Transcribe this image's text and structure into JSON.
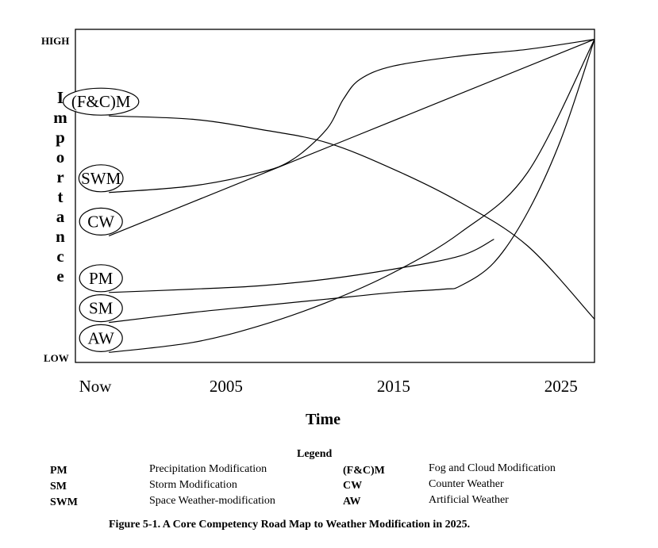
{
  "chart_data": {
    "type": "line",
    "title": "",
    "xlabel": "Time",
    "ylabel": "Importance",
    "y_min_label": "LOW",
    "y_max_label": "HIGH",
    "x_ticks": [
      "Now",
      "2005",
      "2015",
      "2025"
    ],
    "x_tick_values": [
      1996,
      2005,
      2015,
      2025
    ],
    "xlim": [
      1996,
      2027
    ],
    "ylim": [
      0,
      1
    ],
    "series": [
      {
        "name": "(F&C)M",
        "x": [
          1998,
          2003,
          2007,
          2011,
          2015,
          2019,
          2023,
          2027
        ],
        "y": [
          0.74,
          0.73,
          0.7,
          0.66,
          0.58,
          0.48,
          0.35,
          0.13
        ]
      },
      {
        "name": "SWM",
        "x": [
          1998,
          2003,
          2007,
          2009,
          2011,
          2012,
          2013,
          2015,
          2019,
          2023,
          2027
        ],
        "y": [
          0.51,
          0.53,
          0.57,
          0.61,
          0.7,
          0.79,
          0.85,
          0.89,
          0.92,
          0.94,
          0.97
        ]
      },
      {
        "name": "CW",
        "x": [
          1998,
          2027
        ],
        "y": [
          0.38,
          0.97
        ]
      },
      {
        "name": "PM",
        "x": [
          1998,
          2003,
          2007,
          2011,
          2015,
          2019,
          2021
        ],
        "y": [
          0.21,
          0.22,
          0.23,
          0.25,
          0.28,
          0.32,
          0.37
        ]
      },
      {
        "name": "SM",
        "x": [
          1998,
          2003,
          2007,
          2011,
          2015,
          2018,
          2019,
          2021,
          2023,
          2025,
          2027
        ],
        "y": [
          0.12,
          0.15,
          0.17,
          0.19,
          0.21,
          0.22,
          0.23,
          0.3,
          0.45,
          0.67,
          0.97
        ]
      },
      {
        "name": "AW",
        "x": [
          1998,
          2003,
          2007,
          2011,
          2015,
          2019,
          2023,
          2027
        ],
        "y": [
          0.03,
          0.06,
          0.11,
          0.18,
          0.27,
          0.39,
          0.57,
          0.97
        ]
      }
    ]
  },
  "legend": {
    "title": "Legend",
    "items": [
      {
        "abbr": "PM",
        "name": "Precipitation Modification"
      },
      {
        "abbr": "SM",
        "name": "Storm Modification"
      },
      {
        "abbr": "SWM",
        "name": "Space Weather-modification"
      },
      {
        "abbr": "(F&C)M",
        "name": "Fog and Cloud Modification"
      },
      {
        "abbr": "CW",
        "name": "Counter Weather"
      },
      {
        "abbr": "AW",
        "name": "Artificial Weather"
      }
    ]
  },
  "caption": "Figure 5-1.  A Core Competency Road Map to Weather Modification in 2025."
}
